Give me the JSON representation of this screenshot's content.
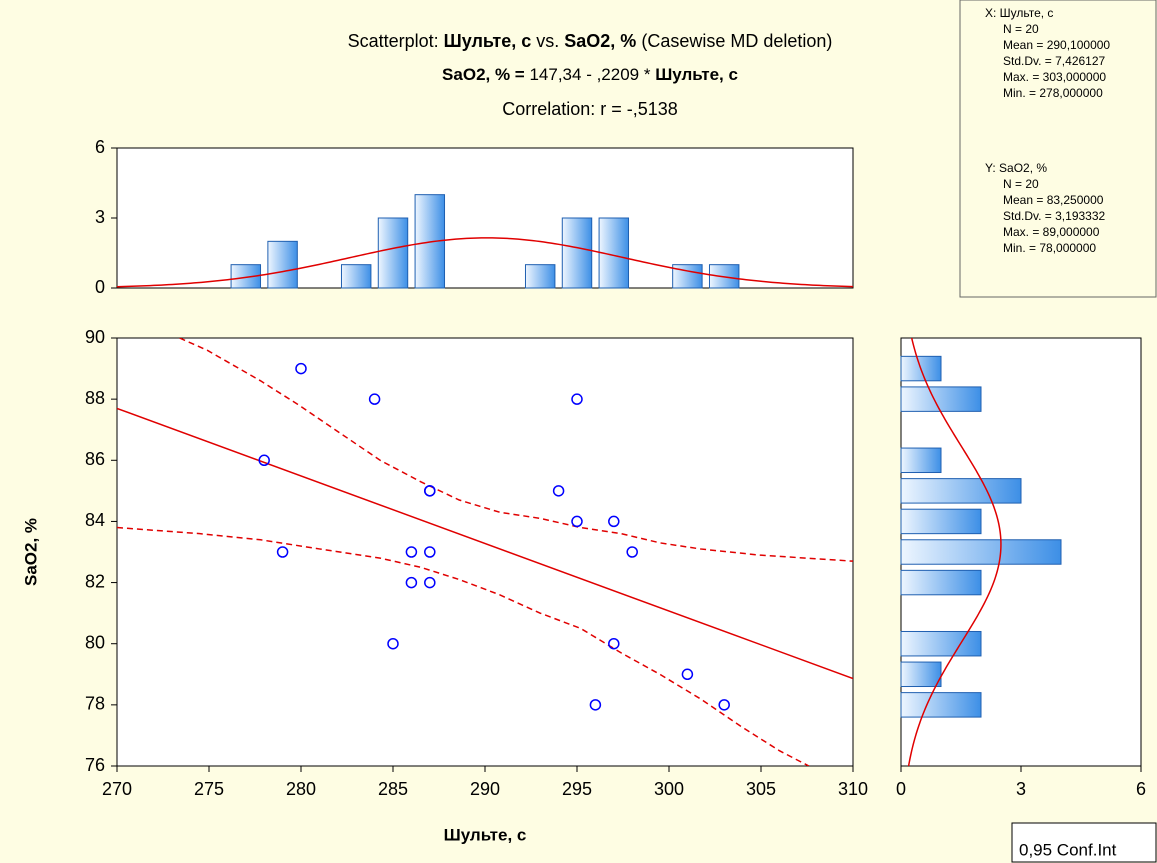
{
  "chart_data": [
    {
      "type": "scatter",
      "title": [
        {
          "text": "Scatterplot: ",
          "bold": false
        },
        {
          "text": "Шульте, с",
          "bold": true
        },
        {
          "text": " vs. ",
          "bold": false
        },
        {
          "text": "SaO2, %",
          "bold": true
        },
        {
          "text": " (Casewise MD deletion)",
          "bold": false
        }
      ],
      "equation": [
        {
          "text": "SaO2, % = ",
          "bold": true
        },
        {
          "text": "147,34 - ,2209  * ",
          "bold": false
        },
        {
          "text": "Шульте, с",
          "bold": true
        }
      ],
      "correlation": "Correlation: r = -,5138",
      "x_label": "Шульте, с",
      "y_label": "SaO2, %",
      "x": [
        278,
        279,
        280,
        284,
        285,
        286,
        286,
        287,
        287,
        287,
        287,
        294,
        295,
        295,
        296,
        297,
        297,
        298,
        301,
        303
      ],
      "values": [
        86,
        83,
        89,
        88,
        80,
        83,
        82,
        85,
        85,
        83,
        82,
        85,
        88,
        84,
        78,
        84,
        80,
        83,
        79,
        78
      ],
      "color": "#0000ff",
      "line_color": "#e00000",
      "fit": {
        "intercept": 147.34,
        "slope": -0.2209
      },
      "upper_band": {
        "x": [
          273.4,
          274.9,
          277.8,
          279.9,
          282.1,
          284.3,
          286.5,
          288.6,
          290.8,
          293.0,
          295.2,
          297.4,
          299.5,
          301.7,
          304.9,
          310
        ],
        "values": [
          90,
          89.6,
          88.6,
          87.8,
          86.9,
          86.0,
          85.3,
          84.7,
          84.3,
          84.1,
          83.8,
          83.6,
          83.3,
          83.1,
          82.9,
          82.7
        ]
      },
      "lower_band": {
        "x": [
          270,
          274.5,
          277.8,
          281.0,
          284.3,
          286.5,
          288.6,
          290.8,
          293.0,
          295.2,
          297.4,
          299.5,
          301.7,
          303.9,
          306.0,
          307.6
        ],
        "values": [
          83.8,
          83.6,
          83.4,
          83.1,
          82.8,
          82.5,
          82.1,
          81.6,
          81.0,
          80.5,
          79.7,
          79.0,
          78.2,
          77.3,
          76.5,
          76
        ]
      },
      "legend": "0,95 Conf.Int",
      "xlim": [
        270,
        310
      ],
      "xticks": [
        270,
        275,
        280,
        285,
        290,
        295,
        300,
        305,
        310
      ],
      "ylim": [
        76,
        90
      ],
      "yticks": [
        76,
        78,
        80,
        82,
        84,
        86,
        88,
        90
      ]
    },
    {
      "type": "histogram",
      "bins": [
        276,
        278,
        280,
        282,
        284,
        286,
        288,
        290,
        292,
        294,
        296,
        298,
        300,
        302,
        304
      ],
      "values": [
        1,
        2,
        0,
        1,
        3,
        4,
        0,
        0,
        1,
        3,
        3,
        0,
        1,
        1
      ],
      "xlim": [
        270,
        310
      ],
      "ylim": [
        0,
        6
      ],
      "yticks": [
        0,
        3,
        6
      ],
      "stats": {
        "heading": "X:  Шульте, с",
        "n": {
          "value": 20,
          "label": "N = 20"
        },
        "mean": {
          "value": 290.1,
          "label": "Mean = 290,100000"
        },
        "sd": {
          "value": 7.426127,
          "label": "Std.Dv. = 7,426127"
        },
        "max": {
          "value": 303,
          "label": "Max. = 303,000000"
        },
        "min": {
          "value": 278,
          "label": "Min. = 278,000000"
        }
      }
    },
    {
      "type": "histogram-horizontal",
      "bins": [
        77.5,
        78.5,
        79.5,
        80.5,
        81.5,
        82.5,
        83.5,
        84.5,
        85.5,
        86.5,
        87.5,
        88.5,
        89.5
      ],
      "values": [
        2,
        1,
        2,
        0,
        2,
        4,
        2,
        3,
        1,
        0,
        2,
        1
      ],
      "ylim": [
        76,
        90
      ],
      "xlim": [
        0,
        6
      ],
      "xticks": [
        0,
        3,
        6
      ],
      "stats": {
        "heading": "Y:  SaO2, %",
        "n": {
          "value": 20,
          "label": "N = 20"
        },
        "mean": {
          "value": 83.25,
          "label": "Mean = 83,250000"
        },
        "sd": {
          "value": 3.193332,
          "label": "Std.Dv. = 3,193332"
        },
        "max": {
          "value": 89,
          "label": "Max. = 89,000000"
        },
        "min": {
          "value": 78,
          "label": "Min. = 78,000000"
        }
      }
    }
  ]
}
